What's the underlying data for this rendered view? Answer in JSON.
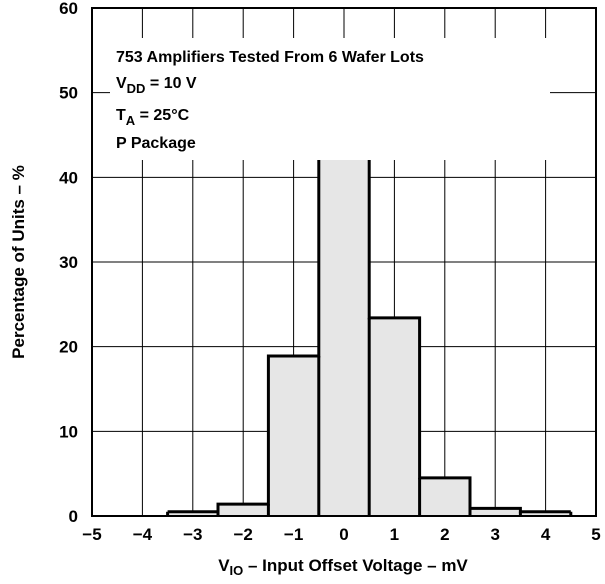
{
  "chart_data": {
    "type": "bar",
    "xlabel": {
      "var": "V",
      "sub": "IO",
      "rest": " – Input Offset Voltage – mV"
    },
    "ylabel": "Percentage of Units – %",
    "xlim": [
      -5,
      5
    ],
    "ylim": [
      0,
      60
    ],
    "xticks": [
      "−5",
      "−4",
      "−3",
      "−2",
      "−1",
      "0",
      "1",
      "2",
      "3",
      "4",
      "5"
    ],
    "yticks": [
      "0",
      "10",
      "20",
      "30",
      "40",
      "50",
      "60"
    ],
    "xtick_values": [
      -5,
      -4,
      -3,
      -2,
      -1,
      0,
      1,
      2,
      3,
      4,
      5
    ],
    "ytick_values": [
      0,
      10,
      20,
      30,
      40,
      50,
      60
    ],
    "bins": [
      {
        "center": -3,
        "value": 0.5
      },
      {
        "center": -2,
        "value": 1.4
      },
      {
        "center": -1,
        "value": 18.9
      },
      {
        "center": 0,
        "value": 46.2
      },
      {
        "center": 1,
        "value": 23.4
      },
      {
        "center": 2,
        "value": 4.5
      },
      {
        "center": 3,
        "value": 0.9
      },
      {
        "center": 4,
        "value": 0.5
      }
    ],
    "bin_width": 1,
    "grid": true,
    "fill_color": "#e6e6e6",
    "line_color": "#000000"
  },
  "annotations": {
    "line1": "753 Amplifiers Tested From 6 Wafer Lots",
    "line2": {
      "var": "V",
      "sub": "DD",
      "rest": " = 10 V"
    },
    "line3": {
      "var": "T",
      "sub": "A",
      "rest": " = 25°C"
    },
    "line4": "P Package"
  }
}
